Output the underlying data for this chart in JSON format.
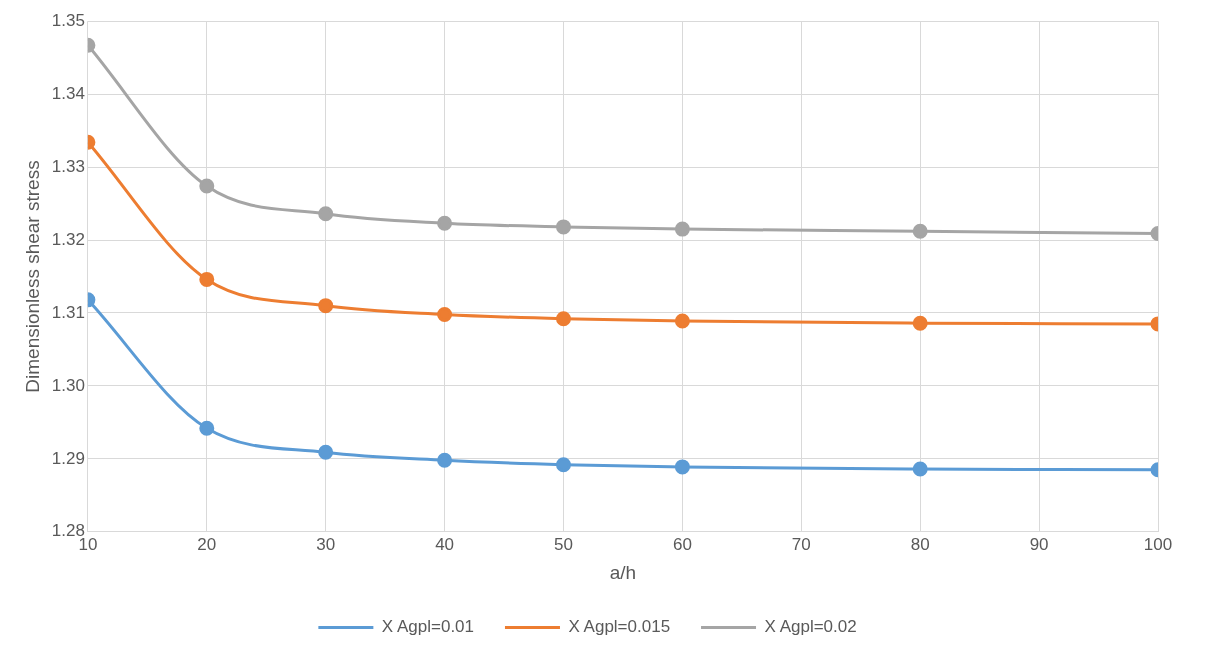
{
  "chart_data": {
    "type": "line",
    "xlabel": "a/h",
    "ylabel": "Dimensionless shear stress",
    "x": [
      10,
      20,
      30,
      40,
      50,
      60,
      80,
      100
    ],
    "series": [
      {
        "name": "X Agpl=0.01",
        "color": "#5b9bd5",
        "values": [
          1.3118,
          1.2942,
          1.2909,
          1.2898,
          1.2892,
          1.2889,
          1.2886,
          1.2885
        ]
      },
      {
        "name": "X Agpl=0.015",
        "color": "#ed7d31",
        "values": [
          1.3334,
          1.3146,
          1.311,
          1.3098,
          1.3092,
          1.3089,
          1.3086,
          1.3085
        ]
      },
      {
        "name": "X Agpl=0.02",
        "color": "#a5a5a5",
        "values": [
          1.3467,
          1.3274,
          1.3236,
          1.3223,
          1.3218,
          1.3215,
          1.3212,
          1.3209
        ]
      }
    ],
    "xlim": [
      10,
      100
    ],
    "xticks": [
      10,
      20,
      30,
      40,
      50,
      60,
      70,
      80,
      90,
      100
    ],
    "ylim": [
      1.28,
      1.35
    ],
    "yticks": [
      {
        "value": 1.28,
        "label": "1.28"
      },
      {
        "value": 1.29,
        "label": "1.29"
      },
      {
        "value": 1.3,
        "label": "1.30"
      },
      {
        "value": 1.31,
        "label": "1.31"
      },
      {
        "value": 1.32,
        "label": "1.32"
      },
      {
        "value": 1.33,
        "label": "1.33"
      },
      {
        "value": 1.34,
        "label": "1.34"
      },
      {
        "value": 1.35,
        "label": "1.35"
      }
    ],
    "grid": true,
    "legend": "bottom",
    "marker": "circle",
    "line_style": "solid"
  }
}
